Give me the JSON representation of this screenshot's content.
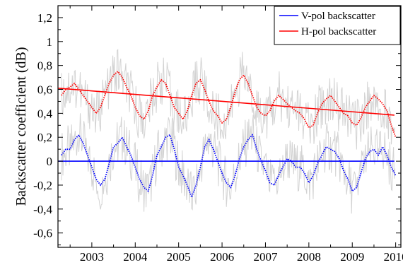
{
  "chart_data": {
    "type": "line",
    "title": "",
    "xlabel": "",
    "ylabel": "Backscatter coefficient (dB)",
    "xlim": [
      2002.22,
      2010.12
    ],
    "ylim": [
      -0.72,
      1.3
    ],
    "x_ticks": [
      2003,
      2004,
      2005,
      2006,
      2007,
      2008,
      2009,
      2010
    ],
    "y_ticks": [
      -0.6,
      -0.4,
      -0.2,
      0,
      0.2,
      0.4,
      0.6,
      0.8,
      1,
      1.2
    ],
    "y_tick_labels": [
      "-0,6",
      "-0,4",
      "-0,2",
      "0",
      "0,2",
      "0,4",
      "0,6",
      "0,8",
      "1",
      "1,2"
    ],
    "grid": false,
    "legend_position": "top-right",
    "x_tick_labels": [
      "2003",
      "2004",
      "2005",
      "2006",
      "2007",
      "2008",
      "2009",
      "2010"
    ],
    "series": [
      {
        "name": "V-pol backscatter",
        "color": "#0000ff",
        "style": "dotted",
        "x": [
          2002.3,
          2002.4,
          2002.5,
          2002.6,
          2002.7,
          2002.8,
          2002.9,
          2003.0,
          2003.1,
          2003.2,
          2003.3,
          2003.4,
          2003.5,
          2003.6,
          2003.7,
          2003.8,
          2003.9,
          2004.0,
          2004.1,
          2004.2,
          2004.3,
          2004.4,
          2004.5,
          2004.6,
          2004.7,
          2004.8,
          2004.9,
          2005.0,
          2005.1,
          2005.2,
          2005.3,
          2005.4,
          2005.5,
          2005.6,
          2005.7,
          2005.8,
          2005.9,
          2006.0,
          2006.1,
          2006.2,
          2006.3,
          2006.4,
          2006.5,
          2006.6,
          2006.7,
          2006.8,
          2006.9,
          2007.0,
          2007.1,
          2007.2,
          2007.3,
          2007.4,
          2007.5,
          2007.6,
          2007.7,
          2007.8,
          2007.9,
          2008.0,
          2008.1,
          2008.2,
          2008.3,
          2008.4,
          2008.5,
          2008.6,
          2008.7,
          2008.8,
          2008.9,
          2009.0,
          2009.1,
          2009.2,
          2009.3,
          2009.4,
          2009.5,
          2009.6,
          2009.7,
          2009.8,
          2009.9,
          2010.0
        ],
        "y": [
          0.05,
          0.1,
          0.1,
          0.18,
          0.22,
          0.15,
          0.05,
          -0.05,
          -0.15,
          -0.2,
          -0.15,
          -0.02,
          0.12,
          0.15,
          0.2,
          0.12,
          0.05,
          -0.05,
          -0.15,
          -0.22,
          -0.25,
          -0.12,
          0.05,
          0.12,
          0.2,
          0.22,
          0.1,
          -0.05,
          -0.12,
          -0.2,
          -0.3,
          -0.2,
          -0.05,
          0.12,
          0.18,
          0.1,
          0.0,
          -0.1,
          -0.18,
          -0.22,
          -0.12,
          0.02,
          0.12,
          0.18,
          0.22,
          0.1,
          0.0,
          -0.08,
          -0.18,
          -0.2,
          -0.12,
          -0.05,
          0.02,
          0.0,
          -0.05,
          -0.05,
          -0.1,
          -0.18,
          -0.12,
          -0.02,
          0.05,
          0.12,
          0.1,
          0.08,
          0.02,
          -0.08,
          -0.15,
          -0.25,
          -0.22,
          -0.1,
          0.02,
          0.08,
          0.1,
          0.05,
          0.12,
          0.05,
          -0.05,
          -0.12
        ]
      },
      {
        "name": "H-pol backscatter",
        "color": "#ff0000",
        "style": "dotted",
        "x": [
          2002.3,
          2002.4,
          2002.5,
          2002.6,
          2002.7,
          2002.8,
          2002.9,
          2003.0,
          2003.1,
          2003.2,
          2003.3,
          2003.4,
          2003.5,
          2003.6,
          2003.7,
          2003.8,
          2003.9,
          2004.0,
          2004.1,
          2004.2,
          2004.3,
          2004.4,
          2004.5,
          2004.6,
          2004.7,
          2004.8,
          2004.9,
          2005.0,
          2005.1,
          2005.2,
          2005.3,
          2005.4,
          2005.5,
          2005.6,
          2005.7,
          2005.8,
          2005.9,
          2006.0,
          2006.1,
          2006.2,
          2006.3,
          2006.4,
          2006.5,
          2006.6,
          2006.7,
          2006.8,
          2006.9,
          2007.0,
          2007.1,
          2007.2,
          2007.3,
          2007.4,
          2007.5,
          2007.6,
          2007.7,
          2007.8,
          2007.9,
          2008.0,
          2008.1,
          2008.2,
          2008.3,
          2008.4,
          2008.5,
          2008.6,
          2008.7,
          2008.8,
          2008.9,
          2009.0,
          2009.1,
          2009.2,
          2009.3,
          2009.4,
          2009.5,
          2009.6,
          2009.7,
          2009.8,
          2009.9,
          2010.0
        ],
        "y": [
          0.55,
          0.6,
          0.62,
          0.65,
          0.6,
          0.55,
          0.5,
          0.45,
          0.4,
          0.45,
          0.55,
          0.65,
          0.72,
          0.75,
          0.7,
          0.62,
          0.55,
          0.45,
          0.38,
          0.35,
          0.42,
          0.55,
          0.62,
          0.68,
          0.65,
          0.55,
          0.45,
          0.4,
          0.35,
          0.42,
          0.55,
          0.65,
          0.68,
          0.6,
          0.5,
          0.42,
          0.38,
          0.32,
          0.35,
          0.45,
          0.58,
          0.68,
          0.72,
          0.65,
          0.55,
          0.45,
          0.4,
          0.38,
          0.42,
          0.5,
          0.55,
          0.52,
          0.48,
          0.45,
          0.42,
          0.4,
          0.35,
          0.28,
          0.3,
          0.4,
          0.48,
          0.52,
          0.55,
          0.5,
          0.45,
          0.4,
          0.38,
          0.32,
          0.3,
          0.36,
          0.45,
          0.5,
          0.55,
          0.52,
          0.48,
          0.42,
          0.3,
          0.2
        ]
      },
      {
        "color": "#0000ff",
        "style": "solid",
        "x": [
          2002.22,
          2009.97
        ],
        "y": [
          0.0,
          0.0
        ]
      },
      {
        "color": "#ff0000",
        "style": "solid",
        "x": [
          2002.22,
          2009.97
        ],
        "y": [
          0.61,
          0.385
        ]
      }
    ]
  }
}
